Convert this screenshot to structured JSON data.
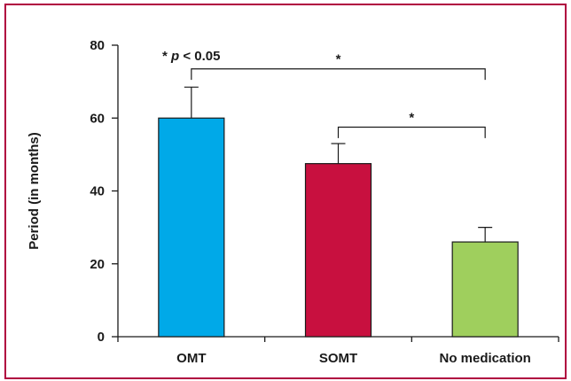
{
  "chart_data": {
    "type": "bar",
    "categories": [
      "OMT",
      "SOMT",
      "No medication"
    ],
    "values": [
      60,
      47.5,
      26
    ],
    "errors": [
      8.5,
      5.5,
      4
    ],
    "colors": [
      "#00a9e8",
      "#c8103f",
      "#9fcf5d"
    ],
    "ylabel": "Period (in months)",
    "xlabel": "",
    "ylim": [
      0,
      80
    ],
    "yticks": [
      0,
      20,
      40,
      60,
      80
    ],
    "grid": false,
    "annotation": {
      "star": "* ",
      "p": "p",
      "rest": " < 0.05"
    },
    "significance": [
      {
        "from": "OMT",
        "to": "No medication",
        "label": "*"
      },
      {
        "from": "SOMT",
        "to": "No medication",
        "label": "*"
      }
    ]
  }
}
